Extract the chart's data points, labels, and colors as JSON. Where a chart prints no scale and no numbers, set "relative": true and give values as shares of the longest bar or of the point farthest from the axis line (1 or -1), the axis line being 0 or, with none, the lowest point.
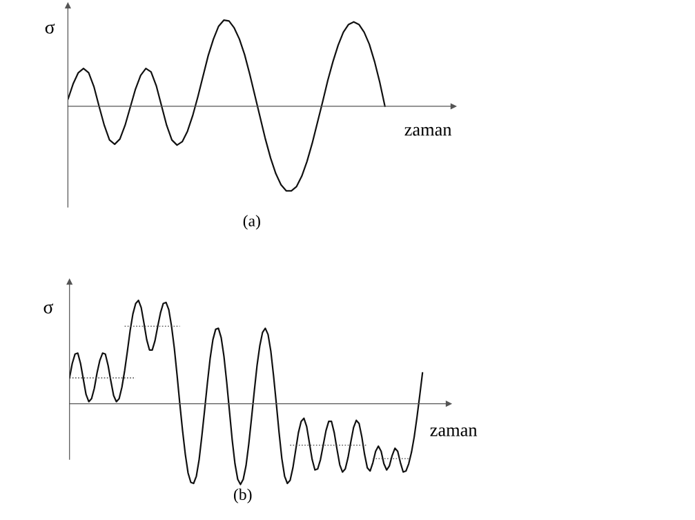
{
  "chart_data": [
    {
      "type": "line",
      "relative": true,
      "title": "(a)",
      "ylabel": "σ",
      "xlabel": "zaman",
      "categories": [
        null,
        null,
        null,
        null,
        null,
        null,
        null,
        null,
        null,
        null,
        null,
        null,
        null,
        null,
        null,
        null,
        null,
        null,
        null,
        null,
        null,
        null,
        null,
        null,
        null,
        null,
        null,
        null,
        null,
        null,
        null,
        null,
        null,
        null,
        null,
        null,
        null,
        null,
        null,
        null,
        null,
        null,
        null,
        null,
        null,
        null,
        null,
        null,
        null,
        null,
        null,
        null,
        null,
        null,
        null,
        null,
        null,
        null,
        null,
        null,
        null,
        null
      ],
      "series": [
        {
          "color": "#111111",
          "line_style": "solid",
          "values": [
            0.08,
            0.26,
            0.39,
            0.44,
            0.39,
            0.23,
            0.0,
            -0.22,
            -0.39,
            -0.44,
            -0.38,
            -0.22,
            -0.01,
            0.2,
            0.36,
            0.44,
            0.4,
            0.24,
            0.01,
            -0.22,
            -0.39,
            -0.45,
            -0.41,
            -0.29,
            -0.11,
            0.11,
            0.35,
            0.59,
            0.78,
            0.93,
            1.0,
            0.99,
            0.91,
            0.78,
            0.6,
            0.37,
            0.12,
            -0.13,
            -0.38,
            -0.6,
            -0.78,
            -0.91,
            -0.98,
            -0.98,
            -0.93,
            -0.81,
            -0.64,
            -0.43,
            -0.19,
            0.05,
            0.3,
            0.52,
            0.71,
            0.86,
            0.95,
            0.98,
            0.95,
            0.86,
            0.72,
            0.52,
            0.28,
            0.0
          ]
        }
      ]
    },
    {
      "type": "line",
      "relative": true,
      "title": "(b)",
      "ylabel": "σ",
      "xlabel": "zaman",
      "categories": [
        null,
        null,
        null,
        null,
        null,
        null,
        null,
        null,
        null,
        null,
        null,
        null,
        null,
        null,
        null,
        null,
        null,
        null,
        null,
        null,
        null,
        null,
        null,
        null,
        null,
        null,
        null,
        null,
        null,
        null,
        null,
        null,
        null,
        null,
        null,
        null,
        null,
        null,
        null,
        null,
        null,
        null,
        null,
        null,
        null,
        null,
        null,
        null,
        null,
        null,
        null,
        null,
        null,
        null,
        null,
        null,
        null,
        null,
        null,
        null,
        null,
        null,
        null,
        null,
        null,
        null,
        null,
        null,
        null,
        null,
        null,
        null,
        null,
        null,
        null,
        null,
        null,
        null,
        null,
        null,
        null,
        null,
        null,
        null,
        null,
        null,
        null,
        null,
        null,
        null,
        null,
        null,
        null,
        null,
        null,
        null,
        null,
        null,
        null,
        null,
        null,
        null,
        null,
        null,
        null,
        null,
        null,
        null,
        null,
        null,
        null,
        null,
        null,
        null,
        null,
        null,
        null,
        null,
        null,
        null,
        null,
        null,
        null,
        null,
        null,
        null,
        null,
        null,
        null
      ],
      "series": [
        {
          "color": "#111111",
          "line_style": "solid",
          "values": [
            0.25,
            0.39,
            0.48,
            0.49,
            0.39,
            0.24,
            0.09,
            0.02,
            0.05,
            0.15,
            0.3,
            0.42,
            0.49,
            0.48,
            0.37,
            0.22,
            0.08,
            0.02,
            0.05,
            0.16,
            0.32,
            0.51,
            0.71,
            0.87,
            0.97,
            1.0,
            0.93,
            0.78,
            0.62,
            0.52,
            0.52,
            0.61,
            0.75,
            0.88,
            0.97,
            0.98,
            0.91,
            0.75,
            0.54,
            0.28,
            0.0,
            -0.26,
            -0.49,
            -0.67,
            -0.76,
            -0.77,
            -0.7,
            -0.54,
            -0.31,
            -0.06,
            0.2,
            0.44,
            0.62,
            0.72,
            0.73,
            0.64,
            0.46,
            0.21,
            -0.07,
            -0.35,
            -0.58,
            -0.73,
            -0.78,
            -0.73,
            -0.6,
            -0.39,
            -0.14,
            0.12,
            0.37,
            0.56,
            0.69,
            0.73,
            0.67,
            0.51,
            0.27,
            0.0,
            -0.28,
            -0.53,
            -0.7,
            -0.77,
            -0.74,
            -0.62,
            -0.45,
            -0.28,
            -0.17,
            -0.14,
            -0.22,
            -0.38,
            -0.54,
            -0.64,
            -0.63,
            -0.54,
            -0.4,
            -0.26,
            -0.17,
            -0.17,
            -0.28,
            -0.44,
            -0.59,
            -0.66,
            -0.63,
            -0.52,
            -0.37,
            -0.23,
            -0.16,
            -0.19,
            -0.32,
            -0.49,
            -0.62,
            -0.65,
            -0.57,
            -0.46,
            -0.41,
            -0.46,
            -0.58,
            -0.64,
            -0.6,
            -0.5,
            -0.43,
            -0.46,
            -0.57,
            -0.66,
            -0.65,
            -0.58,
            -0.47,
            -0.32,
            -0.13,
            0.08,
            0.3
          ]
        },
        {
          "color": "#444444",
          "line_style": "dotted",
          "values": [
            0.25,
            0.25,
            0.25,
            0.25,
            0.25,
            0.25,
            0.25,
            0.25,
            0.25,
            0.25,
            0.25,
            0.25,
            0.25,
            0.25,
            0.25,
            0.25,
            0.25,
            0.25,
            0.25,
            0.25,
            0.25,
            0.25,
            0.25,
            0.25,
            0.25,
            null,
            null,
            null,
            null,
            null,
            null,
            null,
            null,
            null,
            null,
            null,
            null,
            null,
            null,
            null,
            null,
            null,
            null,
            null,
            null,
            null,
            null,
            null,
            null,
            null,
            null,
            null,
            null,
            null,
            null,
            null,
            null,
            null,
            null,
            null,
            null,
            null,
            null,
            null,
            null,
            null,
            null,
            null,
            null,
            null,
            null,
            null,
            null,
            null,
            null,
            null,
            null,
            null,
            null,
            null,
            null,
            null,
            null,
            null,
            null,
            null,
            null,
            null,
            null,
            null,
            null,
            null,
            null,
            null,
            null,
            null,
            null,
            null,
            null,
            null,
            null,
            null,
            null,
            null,
            null,
            null,
            null,
            null,
            null,
            null,
            null,
            null,
            null,
            null,
            null,
            null,
            null,
            null,
            null,
            null,
            null,
            null,
            null,
            null,
            null,
            null,
            null,
            null,
            null
          ]
        },
        {
          "color": "#444444",
          "line_style": "dotted",
          "values": [
            null,
            null,
            null,
            null,
            null,
            null,
            null,
            null,
            null,
            null,
            null,
            null,
            null,
            null,
            null,
            null,
            null,
            null,
            null,
            null,
            0.75,
            0.75,
            0.75,
            0.75,
            0.75,
            0.75,
            0.75,
            0.75,
            0.75,
            0.75,
            0.75,
            0.75,
            0.75,
            0.75,
            0.75,
            0.75,
            0.75,
            0.75,
            0.75,
            0.75,
            0.75,
            null,
            null,
            null,
            null,
            null,
            null,
            null,
            null,
            null,
            null,
            null,
            null,
            null,
            null,
            null,
            null,
            null,
            null,
            null,
            null,
            null,
            null,
            null,
            null,
            null,
            null,
            null,
            null,
            null,
            null,
            null,
            null,
            null,
            null,
            null,
            null,
            null,
            null,
            null,
            null,
            null,
            null,
            null,
            null,
            null,
            null,
            null,
            null,
            null,
            null,
            null,
            null,
            null,
            null,
            null,
            null,
            null,
            null,
            null,
            null,
            null,
            null,
            null,
            null,
            null,
            null,
            null,
            null,
            null,
            null,
            null,
            null,
            null,
            null,
            null,
            null,
            null,
            null,
            null,
            null,
            null,
            null,
            null,
            null,
            null,
            null,
            null,
            null
          ]
        },
        {
          "color": "#444444",
          "line_style": "dotted",
          "values": [
            null,
            null,
            null,
            null,
            null,
            null,
            null,
            null,
            null,
            null,
            null,
            null,
            null,
            null,
            null,
            null,
            null,
            null,
            null,
            null,
            null,
            null,
            null,
            null,
            null,
            null,
            null,
            null,
            null,
            null,
            null,
            null,
            null,
            null,
            null,
            null,
            null,
            null,
            null,
            null,
            null,
            null,
            null,
            null,
            null,
            null,
            null,
            null,
            null,
            null,
            null,
            null,
            null,
            null,
            null,
            null,
            null,
            null,
            null,
            null,
            null,
            null,
            null,
            null,
            null,
            null,
            null,
            null,
            null,
            null,
            null,
            null,
            null,
            null,
            null,
            null,
            null,
            null,
            null,
            null,
            -0.4,
            -0.4,
            -0.4,
            -0.4,
            -0.4,
            -0.4,
            -0.4,
            -0.4,
            -0.4,
            -0.4,
            -0.4,
            -0.4,
            -0.4,
            -0.4,
            -0.4,
            -0.4,
            -0.4,
            -0.4,
            -0.4,
            -0.4,
            -0.4,
            -0.4,
            -0.4,
            -0.4,
            -0.4,
            -0.4,
            -0.4,
            -0.4,
            -0.4,
            null,
            null,
            null,
            null,
            null,
            null,
            null,
            null,
            null,
            null,
            null,
            null,
            null,
            null,
            null,
            null,
            null,
            null,
            null,
            null
          ]
        },
        {
          "color": "#444444",
          "line_style": "dotted",
          "values": [
            null,
            null,
            null,
            null,
            null,
            null,
            null,
            null,
            null,
            null,
            null,
            null,
            null,
            null,
            null,
            null,
            null,
            null,
            null,
            null,
            null,
            null,
            null,
            null,
            null,
            null,
            null,
            null,
            null,
            null,
            null,
            null,
            null,
            null,
            null,
            null,
            null,
            null,
            null,
            null,
            null,
            null,
            null,
            null,
            null,
            null,
            null,
            null,
            null,
            null,
            null,
            null,
            null,
            null,
            null,
            null,
            null,
            null,
            null,
            null,
            null,
            null,
            null,
            null,
            null,
            null,
            null,
            null,
            null,
            null,
            null,
            null,
            null,
            null,
            null,
            null,
            null,
            null,
            null,
            null,
            null,
            null,
            null,
            null,
            null,
            null,
            null,
            null,
            null,
            null,
            null,
            null,
            null,
            null,
            null,
            null,
            null,
            null,
            null,
            null,
            null,
            null,
            null,
            null,
            null,
            null,
            null,
            null,
            null,
            null,
            -0.53,
            -0.53,
            -0.53,
            -0.53,
            -0.53,
            -0.53,
            -0.53,
            -0.53,
            -0.53,
            -0.53,
            -0.53,
            -0.53,
            -0.53,
            -0.53,
            null,
            null,
            null,
            null,
            null
          ]
        }
      ]
    }
  ]
}
